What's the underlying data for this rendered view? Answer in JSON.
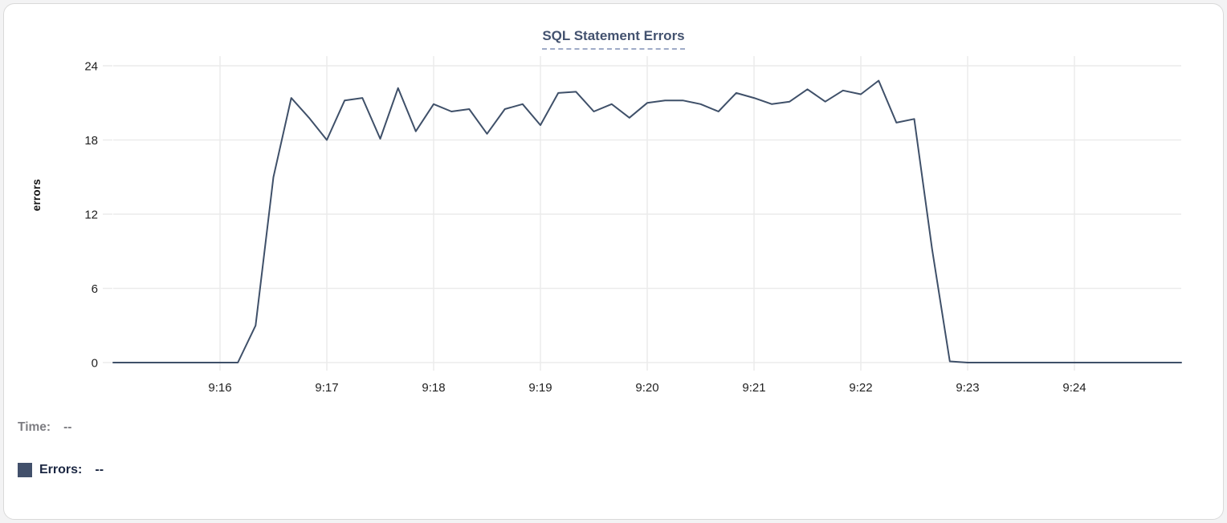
{
  "page": {
    "background": "#f3f3f4",
    "card_background": "#ffffff",
    "card_border": "#d9d9d9"
  },
  "chart": {
    "title": "SQL Statement Errors",
    "title_color": "#43526f",
    "title_underline_color": "#9fabc7"
  },
  "tooltip": {
    "time_label": "Time:",
    "time_value": "--",
    "errors_label": "Errors:",
    "errors_value": "--",
    "time_color": "#7d7d82",
    "errors_color": "#1b2742",
    "swatch_color": "#42506b"
  },
  "chart_data": {
    "type": "line",
    "title": "SQL Statement Errors",
    "xlabel": "",
    "ylabel": "errors",
    "ylim": [
      0,
      24
    ],
    "y_ticks": [
      0,
      6,
      12,
      18,
      24
    ],
    "x_tick_labels": [
      "9:16",
      "9:17",
      "9:18",
      "9:19",
      "9:20",
      "9:21",
      "9:22",
      "9:23",
      "9:24"
    ],
    "x_range": [
      "9:15:00",
      "9:25:00"
    ],
    "grid": true,
    "legend_position": "bottom-left",
    "line_color": "#3f5069",
    "series": [
      {
        "name": "Errors",
        "x": [
          "9:15:00",
          "9:15:10",
          "9:15:20",
          "9:15:30",
          "9:15:40",
          "9:15:50",
          "9:16:00",
          "9:16:10",
          "9:16:20",
          "9:16:30",
          "9:16:40",
          "9:16:50",
          "9:17:00",
          "9:17:10",
          "9:17:20",
          "9:17:30",
          "9:17:40",
          "9:17:50",
          "9:18:00",
          "9:18:10",
          "9:18:20",
          "9:18:30",
          "9:18:40",
          "9:18:50",
          "9:19:00",
          "9:19:10",
          "9:19:20",
          "9:19:30",
          "9:19:40",
          "9:19:50",
          "9:20:00",
          "9:20:10",
          "9:20:20",
          "9:20:30",
          "9:20:40",
          "9:20:50",
          "9:21:00",
          "9:21:10",
          "9:21:20",
          "9:21:30",
          "9:21:40",
          "9:21:50",
          "9:22:00",
          "9:22:10",
          "9:22:20",
          "9:22:30",
          "9:22:40",
          "9:22:50",
          "9:23:00",
          "9:23:10",
          "9:23:20",
          "9:23:30",
          "9:23:40",
          "9:23:50",
          "9:24:00",
          "9:24:10",
          "9:24:20",
          "9:24:30",
          "9:24:40",
          "9:24:50",
          "9:25:00"
        ],
        "values": [
          0,
          0,
          0,
          0,
          0,
          0,
          0,
          0,
          3,
          15,
          21.4,
          19.8,
          18,
          21.2,
          21.4,
          18.1,
          22.2,
          18.7,
          20.9,
          20.3,
          20.5,
          18.5,
          20.5,
          20.9,
          19.2,
          21.8,
          21.9,
          20.3,
          20.9,
          19.8,
          21,
          21.2,
          21.2,
          20.9,
          20.3,
          21.8,
          21.4,
          20.9,
          21.1,
          22.1,
          21.1,
          22,
          21.7,
          22.8,
          19.4,
          19.7,
          9.2,
          0.1,
          0,
          0,
          0,
          0,
          0,
          0,
          0,
          0,
          0,
          0,
          0,
          0,
          0
        ]
      }
    ]
  }
}
